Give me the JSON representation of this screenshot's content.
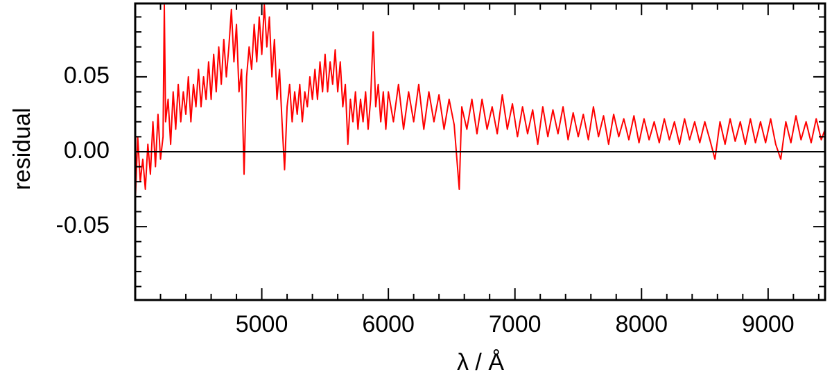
{
  "chart_data": {
    "type": "line",
    "xlabel": "λ / Å",
    "ylabel": "residual",
    "color": "#ff0000",
    "hline": 0,
    "xlim": [
      4000,
      9450
    ],
    "ylim": [
      -0.099,
      0.099
    ],
    "xticks": [
      5000,
      6000,
      7000,
      8000,
      9000
    ],
    "yticks": [
      -0.05,
      {
        "value": 0,
        "label": "0.00"
      },
      0.05
    ],
    "xticks_minor": [
      4200,
      4400,
      4600,
      4800,
      5200,
      5400,
      5600,
      5800,
      6200,
      6400,
      6600,
      6800,
      7200,
      7400,
      7600,
      7800,
      8200,
      8400,
      8600,
      8800,
      9200,
      9400
    ],
    "yticks_minor": [
      -0.09,
      -0.08,
      -0.07,
      -0.06,
      -0.04,
      -0.03,
      -0.02,
      -0.01,
      0.01,
      0.02,
      0.03,
      0.04,
      0.06,
      0.07,
      0.08,
      0.09
    ],
    "x": [
      4000,
      4020,
      4040,
      4060,
      4080,
      4100,
      4120,
      4140,
      4160,
      4180,
      4200,
      4220,
      4230,
      4240,
      4260,
      4280,
      4300,
      4320,
      4340,
      4360,
      4380,
      4400,
      4420,
      4440,
      4460,
      4480,
      4500,
      4520,
      4540,
      4560,
      4580,
      4600,
      4620,
      4640,
      4660,
      4680,
      4700,
      4720,
      4740,
      4760,
      4780,
      4800,
      4820,
      4840,
      4860,
      4880,
      4900,
      4920,
      4940,
      4960,
      4980,
      5000,
      5020,
      5040,
      5060,
      5080,
      5100,
      5120,
      5140,
      5160,
      5180,
      5200,
      5220,
      5240,
      5260,
      5280,
      5300,
      5320,
      5340,
      5360,
      5380,
      5400,
      5420,
      5440,
      5460,
      5480,
      5500,
      5520,
      5540,
      5560,
      5580,
      5600,
      5620,
      5640,
      5660,
      5680,
      5700,
      5720,
      5740,
      5760,
      5780,
      5800,
      5820,
      5840,
      5860,
      5880,
      5900,
      5920,
      5940,
      5960,
      5980,
      6000,
      6040,
      6080,
      6120,
      6160,
      6200,
      6240,
      6280,
      6320,
      6360,
      6400,
      6440,
      6480,
      6520,
      6560,
      6580,
      6620,
      6660,
      6700,
      6740,
      6780,
      6820,
      6860,
      6900,
      6940,
      6980,
      7020,
      7060,
      7100,
      7140,
      7180,
      7220,
      7260,
      7300,
      7340,
      7380,
      7420,
      7460,
      7500,
      7540,
      7580,
      7620,
      7660,
      7700,
      7740,
      7780,
      7820,
      7860,
      7900,
      7940,
      7980,
      8020,
      8060,
      8100,
      8140,
      8180,
      8220,
      8260,
      8300,
      8340,
      8380,
      8420,
      8460,
      8500,
      8540,
      8580,
      8620,
      8660,
      8700,
      8740,
      8780,
      8820,
      8860,
      8900,
      8940,
      8980,
      9020,
      9060,
      9100,
      9140,
      9180,
      9220,
      9260,
      9300,
      9340,
      9380,
      9420,
      9450
    ],
    "values": [
      -0.035,
      0.01,
      -0.02,
      -0.005,
      -0.025,
      0.005,
      -0.015,
      0.02,
      -0.01,
      0.025,
      -0.005,
      0.01,
      0.098,
      0.02,
      0.035,
      0.005,
      0.04,
      0.015,
      0.045,
      0.02,
      0.04,
      0.025,
      0.05,
      0.02,
      0.045,
      0.03,
      0.055,
      0.03,
      0.05,
      0.035,
      0.06,
      0.035,
      0.065,
      0.04,
      0.07,
      0.045,
      0.075,
      0.05,
      0.07,
      0.095,
      0.06,
      0.085,
      0.04,
      0.055,
      -0.015,
      0.05,
      0.07,
      0.055,
      0.085,
      0.06,
      0.09,
      0.065,
      0.098,
      0.07,
      0.09,
      0.05,
      0.075,
      0.035,
      0.055,
      0.02,
      -0.012,
      0.03,
      0.045,
      0.02,
      0.04,
      0.025,
      0.045,
      0.02,
      0.04,
      0.03,
      0.05,
      0.035,
      0.055,
      0.035,
      0.06,
      0.04,
      0.065,
      0.04,
      0.06,
      0.045,
      0.068,
      0.04,
      0.06,
      0.03,
      0.045,
      0.005,
      0.035,
      0.02,
      0.04,
      0.015,
      0.035,
      0.02,
      0.04,
      0.015,
      0.035,
      0.08,
      0.03,
      0.045,
      0.02,
      0.04,
      0.015,
      0.04,
      0.02,
      0.045,
      0.015,
      0.04,
      0.02,
      0.045,
      0.015,
      0.04,
      0.02,
      0.038,
      0.015,
      0.035,
      0.018,
      -0.025,
      0.03,
      0.015,
      0.035,
      0.012,
      0.035,
      0.015,
      0.03,
      0.012,
      0.038,
      0.015,
      0.032,
      0.01,
      0.03,
      0.012,
      0.028,
      0.005,
      0.03,
      0.01,
      0.028,
      0.012,
      0.03,
      0.008,
      0.026,
      0.01,
      0.025,
      0.008,
      0.03,
      0.01,
      0.024,
      0.005,
      0.025,
      0.01,
      0.022,
      0.008,
      0.024,
      0.006,
      0.022,
      0.008,
      0.02,
      0.006,
      0.022,
      0.008,
      0.02,
      0.005,
      0.022,
      0.008,
      0.02,
      0.006,
      0.02,
      0.008,
      -0.005,
      0.02,
      0.005,
      0.022,
      0.007,
      0.02,
      0.005,
      0.022,
      0.006,
      0.02,
      0.006,
      0.022,
      0.005,
      -0.005,
      0.02,
      0.006,
      0.024,
      0.008,
      0.02,
      0.006,
      0.022,
      0.008,
      0.015
    ]
  }
}
